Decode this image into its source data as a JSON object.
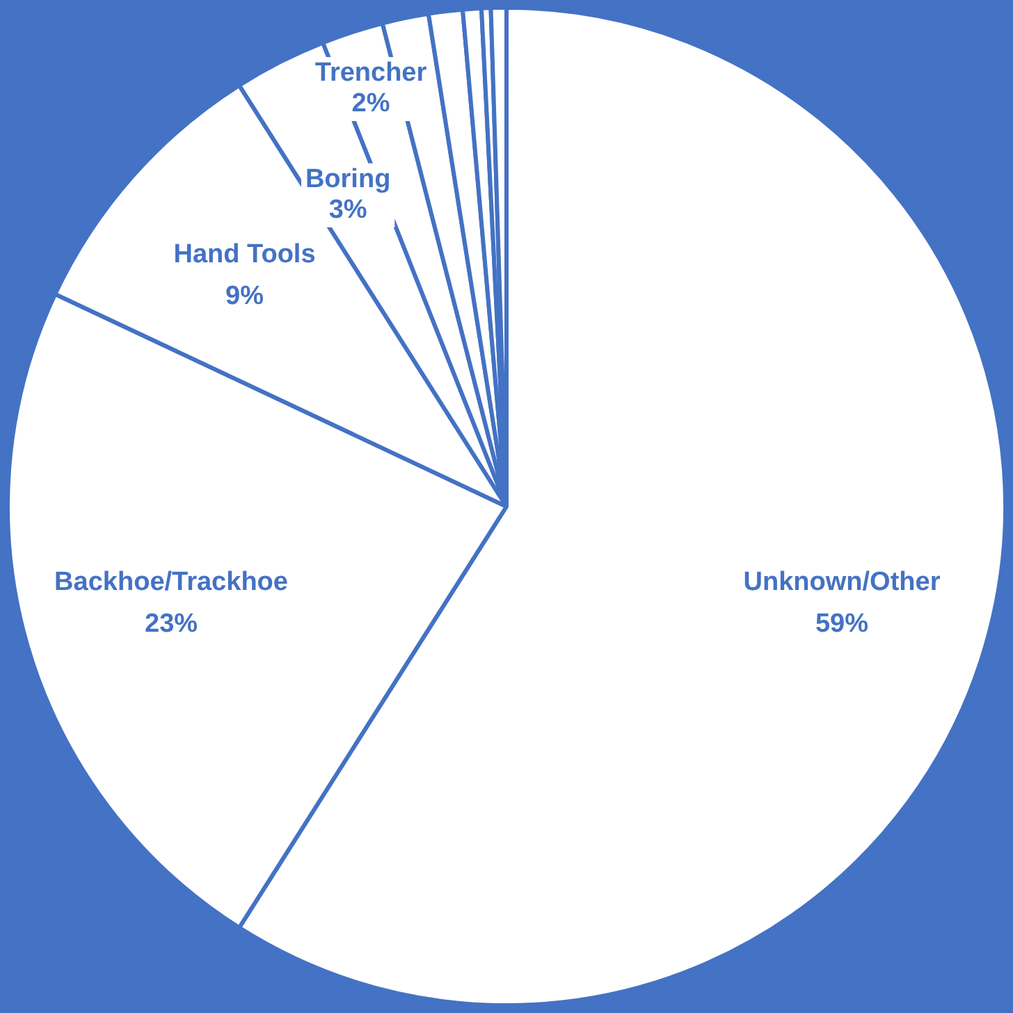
{
  "chart_data": {
    "type": "pie",
    "categories": [
      "Unknown/Other",
      "Backhoe/Trackhoe",
      "Hand Tools",
      "Boring",
      "Trencher",
      null,
      null,
      null,
      null,
      null
    ],
    "values": [
      59,
      23,
      9,
      3,
      2,
      1.5,
      1.1,
      0.6,
      0.3,
      0.5
    ],
    "colors": [
      "#ffffff",
      "#ffffff",
      "#ffffff",
      "#ffffff",
      "#ffffff",
      "#ffffff",
      "#ffffff",
      "#ffffff",
      "#ffffff",
      "#ffffff"
    ],
    "value_labels": [
      "59%",
      "23%",
      "9%",
      "3%",
      "2%",
      null,
      null,
      null,
      null,
      null
    ],
    "legend": false
  }
}
